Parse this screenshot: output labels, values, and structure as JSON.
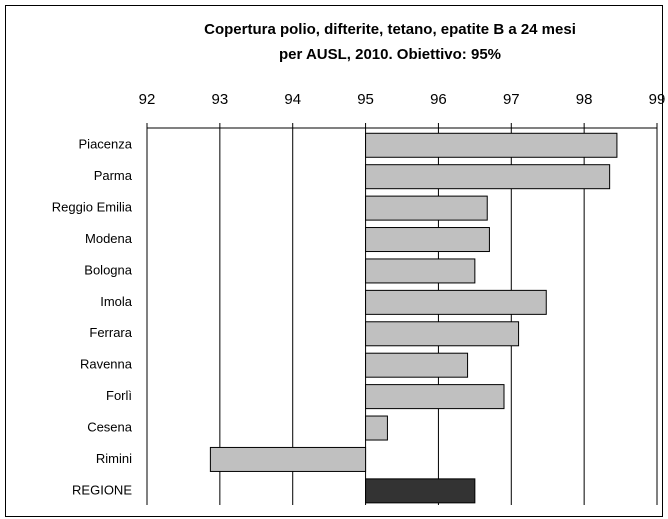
{
  "chart_data": {
    "type": "bar",
    "orientation": "horizontal",
    "title": [
      "Copertura polio, difterite, tetano, epatite B a 24 mesi",
      "per AUSL, 2010. Obiettivo: 95%"
    ],
    "categories": [
      "Piacenza",
      "Parma",
      "Reggio Emilia",
      "Modena",
      "Bologna",
      "Imola",
      "Ferrara",
      "Ravenna",
      "Forlì",
      "Cesena",
      "Rimini",
      "REGIONE"
    ],
    "values": [
      98.45,
      98.35,
      96.67,
      96.7,
      96.5,
      97.48,
      97.1,
      96.4,
      96.9,
      95.3,
      92.87,
      96.5
    ],
    "colors": [
      "#c0c0c0",
      "#c0c0c0",
      "#c0c0c0",
      "#c0c0c0",
      "#c0c0c0",
      "#c0c0c0",
      "#c0c0c0",
      "#c0c0c0",
      "#c0c0c0",
      "#c0c0c0",
      "#c0c0c0",
      "#333333"
    ],
    "baseline": 95,
    "xlim": [
      92,
      99
    ],
    "xticks": [
      92,
      93,
      94,
      95,
      96,
      97,
      98,
      99
    ],
    "grid": true
  }
}
